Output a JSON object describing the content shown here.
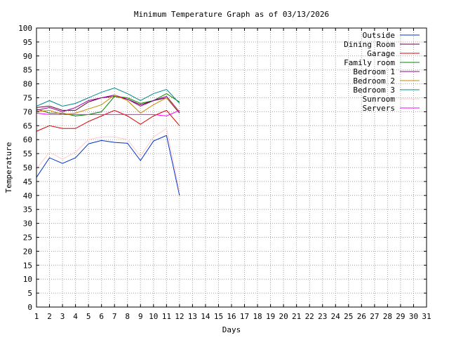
{
  "chart_data": {
    "type": "line",
    "title": "Minimum Temperature Graph as of 03/13/2026",
    "xlabel": "Days",
    "ylabel": "Temperature",
    "xlim": [
      1,
      31
    ],
    "ylim": [
      0,
      100
    ],
    "x_ticks": [
      "1",
      "2",
      "3",
      "4",
      "5",
      "6",
      "7",
      "8",
      "9",
      "10",
      "11",
      "12",
      "13",
      "14",
      "15",
      "16",
      "17",
      "18",
      "19",
      "20",
      "21",
      "22",
      "23",
      "24",
      "25",
      "26",
      "27",
      "28",
      "29",
      "30",
      "31"
    ],
    "y_ticks": [
      "0",
      "5",
      "10",
      "15",
      "20",
      "25",
      "30",
      "35",
      "40",
      "45",
      "50",
      "55",
      "60",
      "65",
      "70",
      "75",
      "80",
      "85",
      "90",
      "95",
      "100"
    ],
    "grid": true,
    "grid_style": "dotted",
    "legend_position": "top-right",
    "x": [
      1,
      2,
      3,
      4,
      5,
      6,
      7,
      8,
      9,
      10,
      11,
      12
    ],
    "series": [
      {
        "name": "Outside",
        "color": "#0033cc",
        "values": [
          46.5,
          53.5,
          51.5,
          53.5,
          58.5,
          59.7,
          59.0,
          58.7,
          52.5,
          59.5,
          61.5,
          40.0
        ]
      },
      {
        "name": "Dining Room",
        "color": "#660033",
        "values": [
          71.5,
          72.0,
          70.5,
          70.5,
          73.5,
          75.0,
          75.5,
          74.5,
          72.5,
          74.0,
          75.0,
          69.5
        ]
      },
      {
        "name": "Garage",
        "color": "#dd0000",
        "values": [
          63.0,
          65.0,
          64.0,
          64.0,
          66.5,
          68.5,
          70.5,
          68.5,
          65.5,
          68.5,
          70.5,
          65.0
        ]
      },
      {
        "name": "Family room",
        "color": "#008800",
        "values": [
          71.0,
          69.5,
          69.5,
          68.5,
          69.0,
          70.0,
          75.5,
          75.0,
          73.0,
          74.0,
          76.5,
          73.5
        ]
      },
      {
        "name": "Bedroom 1",
        "color": "#990099",
        "values": [
          70.5,
          71.5,
          70.0,
          71.5,
          74.0,
          75.0,
          76.0,
          74.5,
          72.0,
          74.0,
          75.5,
          70.0
        ]
      },
      {
        "name": "Bedroom 2",
        "color": "#cc8800",
        "values": [
          70.0,
          70.5,
          69.0,
          69.5,
          71.0,
          72.5,
          76.0,
          74.0,
          69.5,
          72.5,
          75.0,
          70.0
        ]
      },
      {
        "name": "Bedroom 3",
        "color": "#008888",
        "values": [
          72.0,
          74.0,
          72.0,
          73.0,
          75.0,
          77.0,
          78.5,
          76.5,
          74.0,
          76.5,
          78.0,
          73.0
        ]
      },
      {
        "name": "Sunroom",
        "color": "#ffcccc",
        "values": [
          49.5,
          55.5,
          53.0,
          55.5,
          60.0,
          61.0,
          61.0,
          60.0,
          54.0,
          61.0,
          64.0,
          41.0
        ]
      },
      {
        "name": "Servers",
        "color": "#ff00ff",
        "values": [
          69.5,
          69.0,
          69.0,
          69.0,
          69.0,
          69.0,
          69.0,
          69.0,
          69.0,
          69.0,
          68.5,
          70.5
        ]
      }
    ]
  }
}
